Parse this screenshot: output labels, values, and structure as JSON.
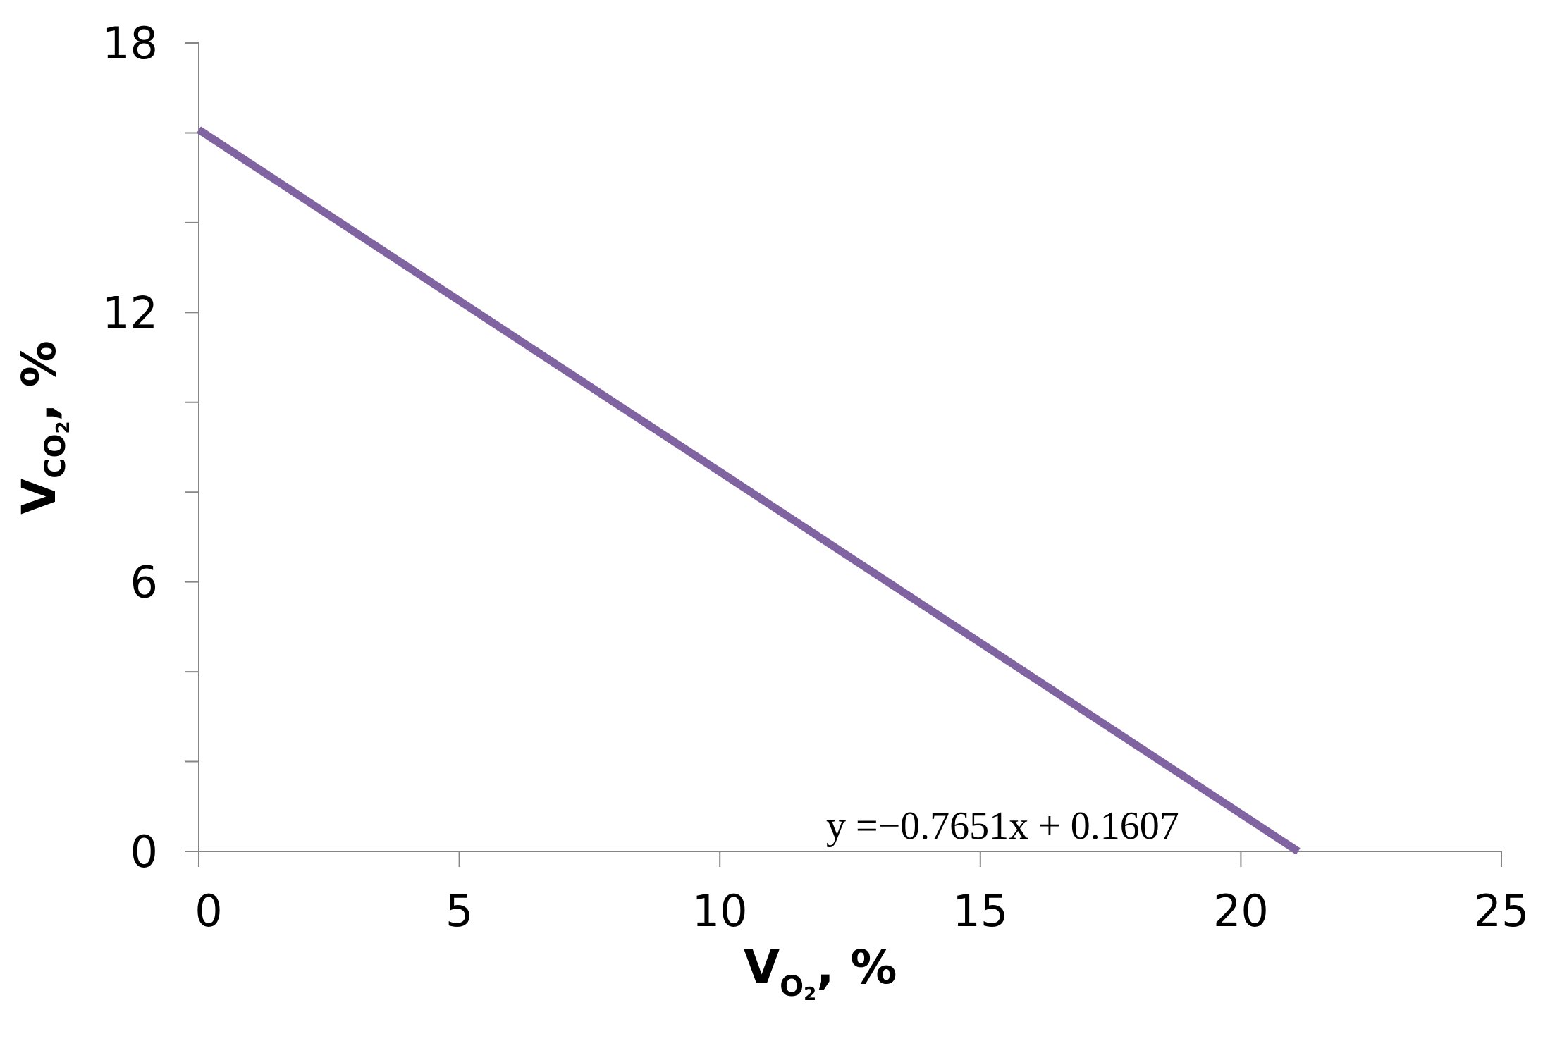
{
  "chart_data": {
    "type": "line",
    "title": "",
    "xlabel": {
      "main": "V",
      "subscript": "O",
      "subsubscript": "2",
      "suffix": ", %"
    },
    "ylabel": {
      "main": "V",
      "subscript": "CO",
      "subsubscript": "2",
      "suffix": ", %"
    },
    "xlim": [
      0,
      25
    ],
    "ylim": [
      0,
      18
    ],
    "x_ticks": [
      0,
      5,
      10,
      15,
      20,
      25
    ],
    "x_tick_labels": [
      "0",
      "5",
      "10",
      "15",
      "20",
      "25"
    ],
    "y_ticks": [
      0,
      2,
      4,
      6,
      8,
      10,
      12,
      14,
      16,
      18
    ],
    "y_tick_labels": [
      "0",
      "6",
      "12",
      "18"
    ],
    "y_labeled_ticks": [
      0,
      6,
      12,
      18
    ],
    "grid": false,
    "legend": "none",
    "series": [
      {
        "x": [
          0,
          21.1
        ],
        "y": [
          16.07,
          0
        ],
        "color": "#8064a2"
      }
    ],
    "annotations": [
      {
        "text": "y =−0.7651x + 0.1607"
      }
    ],
    "colors": {
      "line": "#8064a2",
      "axis": "#868686",
      "text": "#000000"
    }
  }
}
